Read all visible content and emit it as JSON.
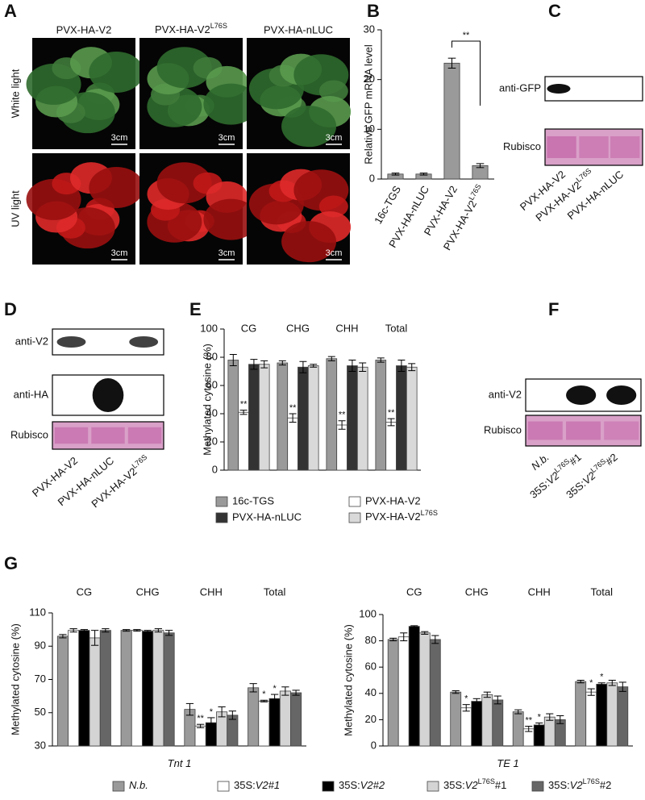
{
  "panels": {
    "A": {
      "letter": "A",
      "columns": [
        "PVX-HA-V2",
        {
          "text": "PVX-HA-V2",
          "sup": "L76S"
        },
        "PVX-HA-nLUC"
      ],
      "rows": [
        "White light",
        "UV light"
      ],
      "scale": "3cm"
    },
    "C": {
      "letter": "C",
      "blots": [
        "anti-GFP",
        "Rubisco"
      ],
      "lanes": [
        "PVX-HA-V2",
        {
          "text": "PVX-HA-V2",
          "sup": "L76S"
        },
        "PVX-HA-nLUC"
      ]
    },
    "D": {
      "letter": "D",
      "blots": [
        "anti-V2",
        "anti-HA",
        "Rubisco"
      ],
      "lanes": [
        "PVX-HA-V2",
        "PVX-HA-nLUC",
        {
          "text": "PVX-HA-V2",
          "sup": "L76S"
        }
      ]
    },
    "F": {
      "letter": "F",
      "blots": [
        "anti-V2",
        "Rubisco"
      ],
      "lanes": [
        {
          "italic": "N.b."
        },
        {
          "text": "35S:",
          "italic": "V2",
          "sup": "L76S",
          "tail": "#1"
        },
        {
          "text": "35S:",
          "italic": "V2",
          "sup": "L76S",
          "tail": "#2"
        }
      ]
    }
  },
  "chart_data": [
    {
      "type": "bar",
      "panel": "B",
      "y_label": "Relative GFP mRNA level",
      "categories": [
        "16c-TGS",
        "PVX-HA-nLUC",
        "PVX-HA-V2",
        {
          "text": "PVX-HA-V2",
          "sup": "L76S"
        }
      ],
      "values": [
        1.0,
        1.0,
        23.3,
        2.7
      ],
      "errors": [
        0.2,
        0.2,
        1.0,
        0.4
      ],
      "color": "#9a9a9a",
      "annotation": "**",
      "ylim": [
        0,
        30
      ],
      "yticks": [
        0,
        10,
        20,
        30
      ]
    },
    {
      "type": "grouped_bar",
      "panel": "E",
      "y_label": "Methylated cytosine (%)",
      "categories": [
        "CG",
        "CHG",
        "CHH",
        "Total"
      ],
      "series": [
        {
          "name": "16c-TGS",
          "color": "#9a9a9a",
          "values": [
            78,
            76,
            79,
            78
          ],
          "errors": [
            4,
            1.5,
            1.5,
            1.5
          ]
        },
        {
          "name": "PVX-HA-V2",
          "color": "#ffffff",
          "values": [
            41,
            37,
            32,
            34
          ],
          "errors": [
            1.5,
            3,
            3,
            2.5
          ],
          "significance": [
            "**",
            "**",
            "**",
            "**"
          ]
        },
        {
          "name": "PVX-HA-nLUC",
          "color": "#333333",
          "values": [
            75,
            73,
            74,
            74
          ],
          "errors": [
            3.5,
            4,
            4,
            4
          ]
        },
        {
          "name": {
            "text": "PVX-HA-V2",
            "sup": "L76S"
          },
          "color": "#d9d9d9",
          "values": [
            75,
            74,
            73,
            73
          ],
          "errors": [
            2.5,
            1,
            3,
            2.5
          ]
        }
      ],
      "ylim": [
        0,
        100
      ],
      "yticks": [
        0,
        20,
        40,
        60,
        80,
        100
      ]
    },
    {
      "type": "grouped_bar",
      "panel": "G",
      "y_label": "Methylated cytosine (%)",
      "x_label": {
        "italic": "Tnt",
        "tail": " 1"
      },
      "categories": [
        "CG",
        "CHG",
        "CHH",
        "Total"
      ],
      "series": [
        {
          "name": {
            "italic": "N.b."
          },
          "color": "#9a9a9a",
          "values": [
            96,
            99.5,
            52,
            65
          ],
          "errors": [
            1,
            0.5,
            3.5,
            2.5
          ]
        },
        {
          "name": {
            "text": "35S:",
            "italic": "V2#1"
          },
          "color": "#ffffff",
          "values": [
            99.5,
            99.5,
            42,
            57
          ],
          "errors": [
            1,
            0.5,
            1,
            0.5
          ],
          "significance": [
            null,
            null,
            "**",
            "*"
          ]
        },
        {
          "name": {
            "text": "35S:",
            "italic": "V2#2"
          },
          "color": "#000000",
          "values": [
            99.5,
            99,
            44,
            58.5
          ],
          "errors": [
            0.5,
            0.5,
            3,
            2.5
          ],
          "significance": [
            null,
            null,
            "*",
            "*"
          ]
        },
        {
          "name": {
            "text": "35S:",
            "italic": "V2",
            "sup": "L76S",
            "tail": "#1"
          },
          "color": "#d4d4d4",
          "values": [
            95,
            99.5,
            50.5,
            63
          ],
          "errors": [
            4.5,
            1,
            3,
            2.5
          ]
        },
        {
          "name": {
            "text": "35S:",
            "italic": "V2",
            "sup": "L76S",
            "tail": "#2"
          },
          "color": "#666666",
          "values": [
            99.5,
            98,
            48.5,
            62
          ],
          "errors": [
            1,
            1.5,
            2.5,
            1.5
          ]
        }
      ],
      "ylim": [
        30,
        110
      ],
      "yticks": [
        30,
        50,
        70,
        90,
        110
      ]
    },
    {
      "type": "grouped_bar",
      "y_label": "Methylated cytosine (%)",
      "x_label": {
        "italic": "TE",
        "tail": " 1"
      },
      "categories": [
        "CG",
        "CHG",
        "CHH",
        "Total"
      ],
      "series": [
        {
          "color": "#9a9a9a",
          "values": [
            81,
            41,
            26,
            49
          ],
          "errors": [
            1,
            1,
            1.5,
            1
          ]
        },
        {
          "color": "#ffffff",
          "values": [
            83,
            29,
            13,
            41
          ],
          "errors": [
            3,
            2.5,
            2,
            2.5
          ],
          "significance": [
            null,
            "*",
            "**",
            "*"
          ]
        },
        {
          "color": "#000000",
          "values": [
            91,
            34,
            16,
            47
          ],
          "errors": [
            0.5,
            2,
            1.5,
            1
          ],
          "significance": [
            null,
            null,
            "*",
            "*"
          ]
        },
        {
          "color": "#d4d4d4",
          "values": [
            86,
            39,
            22,
            48
          ],
          "errors": [
            1,
            2,
            2.5,
            2
          ]
        },
        {
          "color": "#666666",
          "values": [
            81,
            35,
            20,
            45
          ],
          "errors": [
            3,
            3,
            3,
            3.5
          ]
        }
      ],
      "ylim": [
        0,
        100
      ],
      "yticks": [
        0,
        20,
        40,
        60,
        80,
        100
      ]
    }
  ]
}
